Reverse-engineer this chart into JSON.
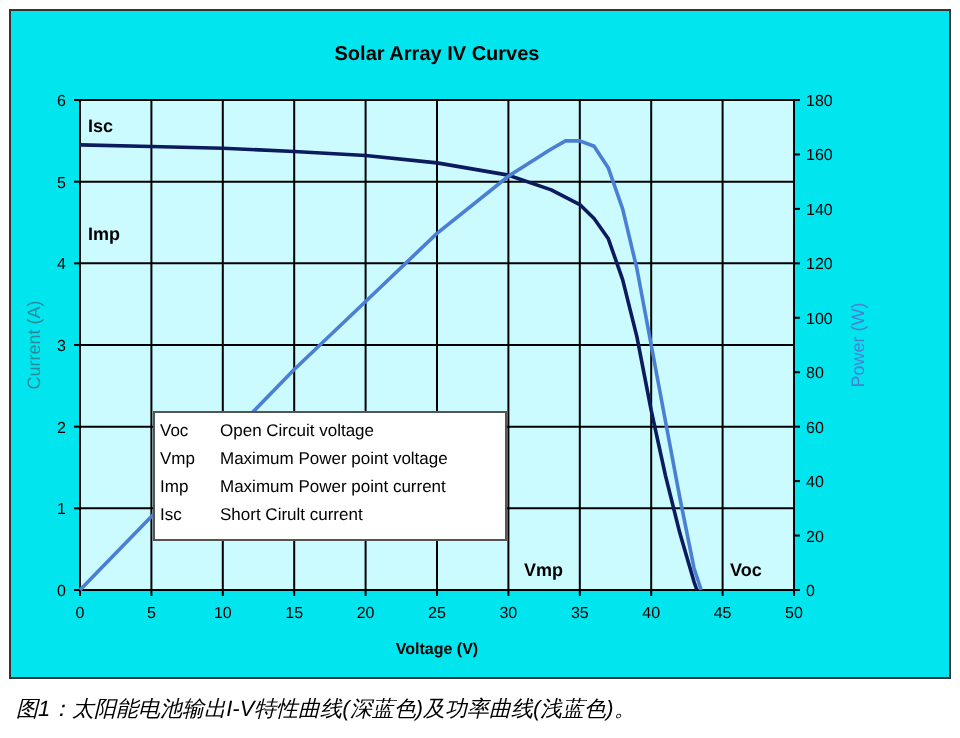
{
  "chart_data": {
    "type": "line",
    "title": "Solar Array IV Curves",
    "xlabel": "Voltage (V)",
    "ylabel": "Current (A)",
    "y2label": "Power (W)",
    "xlim": [
      0,
      50
    ],
    "xticks": [
      0,
      5,
      10,
      15,
      20,
      25,
      30,
      35,
      40,
      45,
      50
    ],
    "ylim": [
      0,
      6
    ],
    "yticks": [
      0,
      1,
      2,
      3,
      4,
      5,
      6
    ],
    "y2lim": [
      0,
      180
    ],
    "y2ticks": [
      0,
      20,
      40,
      60,
      80,
      100,
      120,
      140,
      160,
      180
    ],
    "grid": true,
    "marker": "none",
    "line_style": "solid",
    "series": [
      {
        "color": "#0c1a5e",
        "x": [
          0,
          5,
          10,
          15,
          20,
          25,
          30,
          33,
          35,
          36,
          37,
          38,
          39,
          40,
          41,
          42,
          43,
          43.2
        ],
        "values": [
          5.45,
          5.43,
          5.41,
          5.37,
          5.32,
          5.23,
          5.08,
          4.9,
          4.72,
          4.55,
          4.3,
          3.8,
          3.1,
          2.2,
          1.4,
          0.7,
          0.1,
          0
        ]
      },
      {
        "color": "#4a7fd4",
        "axis": "y2",
        "x": [
          0,
          5,
          15,
          20,
          25,
          30,
          33,
          34,
          35,
          36,
          37,
          38,
          39,
          40,
          41,
          42,
          43,
          43.5
        ],
        "values": [
          0,
          27,
          81,
          106,
          131,
          152,
          162,
          165,
          165,
          163,
          155,
          140,
          118,
          90,
          62,
          34,
          8,
          0
        ]
      }
    ],
    "annotations": [
      "Isc",
      "Imp",
      "Vmp",
      "Voc",
      "Voc Open Circuit voltage",
      "Vmp Maximum Power point voltage",
      "Imp Maximum Power point current",
      "Isc Short Cirult current",
      "图1：太阳能电池输出I-V特性曲线(深蓝色)及功率曲线(浅蓝色)。"
    ]
  }
}
